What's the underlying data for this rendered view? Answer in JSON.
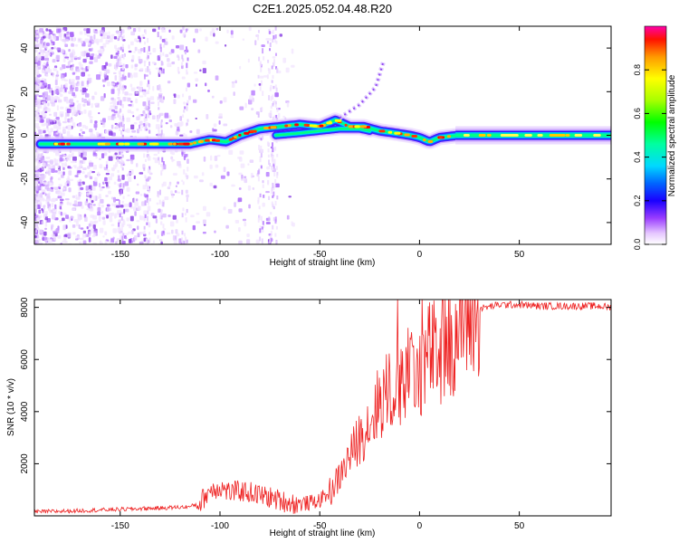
{
  "title": "C2E1.2025.052.04.48.R20",
  "colorbar": {
    "label": "Normalized spectral amplitude",
    "ticks": [
      "0.0",
      "0.2",
      "0.4",
      "0.6",
      "0.8"
    ],
    "tick_values": [
      0.0,
      0.2,
      0.4,
      0.6,
      0.8
    ],
    "range": [
      0,
      1
    ]
  },
  "chart_data": [
    {
      "type": "heatmap",
      "title": "",
      "xlabel": "Height of straight line (km)",
      "ylabel": "Frequency (Hz)",
      "xlim": [
        -193,
        96
      ],
      "ylim": [
        -50,
        50
      ],
      "xticks": [
        -150,
        -100,
        -50,
        0,
        50
      ],
      "yticks": [
        -40,
        -20,
        0,
        20,
        40
      ],
      "grid": false,
      "colormap": "rainbow (white-magenta-blue-cyan-green-yellow-red)",
      "features": [
        {
          "name": "main_line",
          "x": [
            -190,
            -150,
            -130,
            -115,
            -105,
            -97,
            -90,
            -80,
            -70,
            -60,
            -50,
            -42,
            -35,
            -28,
            -20,
            -12,
            -5,
            0,
            5,
            10,
            20,
            40,
            60,
            80,
            96
          ],
          "y": [
            -4,
            -4,
            -4,
            -4,
            -2,
            -3,
            0,
            3,
            4,
            5,
            4,
            7,
            4,
            4,
            2,
            1,
            0,
            -1,
            -3,
            -1,
            0,
            0,
            0,
            0,
            0
          ]
        },
        {
          "name": "lower_branch",
          "x": [
            -72,
            -60,
            -50,
            -40,
            -30,
            -25
          ],
          "y": [
            0,
            1,
            2,
            3,
            3,
            2
          ]
        },
        {
          "name": "rising_streak",
          "x": [
            -40,
            -30,
            -22,
            -18
          ],
          "y": [
            8,
            14,
            22,
            34
          ]
        }
      ]
    },
    {
      "type": "line",
      "title": "",
      "xlabel": "Height of straight line (km)",
      "ylabel": "SNR (10 * v/v)",
      "xlim": [
        -193,
        96
      ],
      "ylim": [
        0,
        8300
      ],
      "xticks": [
        -150,
        -100,
        -50,
        0,
        50
      ],
      "yticks": [
        2000,
        4000,
        6000,
        8000
      ],
      "grid": false,
      "series": [
        {
          "color": "#ee2222",
          "x": [
            -193,
            -170,
            -150,
            -130,
            -115,
            -110,
            -105,
            -100,
            -95,
            -90,
            -85,
            -80,
            -75,
            -70,
            -65,
            -60,
            -55,
            -50,
            -45,
            -40,
            -35,
            -30,
            -25,
            -20,
            -15,
            -10,
            -5,
            0,
            5,
            10,
            15,
            20,
            25,
            30,
            40,
            50,
            60,
            70,
            80,
            90,
            96
          ],
          "y": [
            150,
            200,
            250,
            300,
            350,
            500,
            1000,
            1100,
            900,
            950,
            900,
            800,
            700,
            600,
            500,
            450,
            500,
            600,
            900,
            1500,
            2300,
            3000,
            3600,
            4400,
            4800,
            5200,
            5400,
            5700,
            6200,
            6600,
            6900,
            7300,
            7700,
            7950,
            8100,
            8100,
            8050,
            8050,
            8050,
            8050,
            8000
          ]
        }
      ]
    }
  ],
  "colors": {
    "snr_line": "#ee2222",
    "axes": "#000000",
    "background": "#ffffff"
  }
}
